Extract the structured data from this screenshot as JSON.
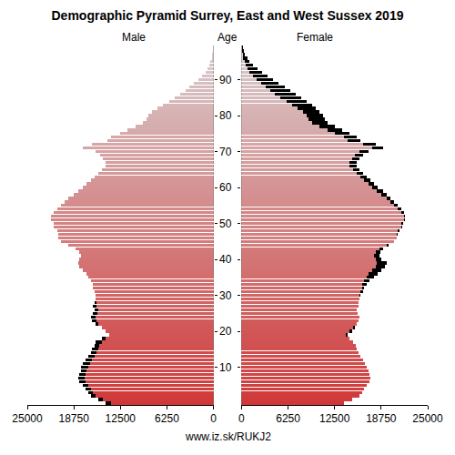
{
  "chart_data": {
    "type": "pyramid",
    "title": "Demographic Pyramid Surrey, East and West Sussex 2019",
    "ylabel": "Age",
    "source": "www.iz.sk/RUKJ2",
    "orientation": "horizontal",
    "categories": [
      0,
      1,
      2,
      3,
      4,
      5,
      6,
      7,
      8,
      9,
      10,
      11,
      12,
      13,
      14,
      15,
      16,
      17,
      18,
      19,
      20,
      21,
      22,
      23,
      24,
      25,
      26,
      27,
      28,
      29,
      30,
      31,
      32,
      33,
      34,
      35,
      36,
      37,
      38,
      39,
      40,
      41,
      42,
      43,
      44,
      45,
      46,
      47,
      48,
      49,
      50,
      51,
      52,
      53,
      54,
      55,
      56,
      57,
      58,
      59,
      60,
      61,
      62,
      63,
      64,
      65,
      66,
      67,
      68,
      69,
      70,
      71,
      72,
      73,
      74,
      75,
      76,
      77,
      78,
      79,
      80,
      81,
      82,
      83,
      84,
      85,
      86,
      87,
      88,
      89,
      90,
      91,
      92,
      93,
      94,
      95,
      96,
      97,
      98,
      99
    ],
    "series": [
      {
        "name": "Male",
        "values": [
          14500,
          15500,
          16500,
          16800,
          17200,
          17500,
          18000,
          18200,
          18000,
          17800,
          17800,
          17500,
          17200,
          16800,
          16500,
          16300,
          16000,
          15800,
          15000,
          14000,
          14500,
          15000,
          15800,
          16300,
          16500,
          16200,
          16000,
          16200,
          16000,
          15800,
          15800,
          16000,
          16200,
          16200,
          16500,
          16800,
          17000,
          17500,
          18000,
          18200,
          18000,
          17800,
          18000,
          18500,
          19500,
          20500,
          20800,
          20800,
          21000,
          21500,
          21500,
          21800,
          21800,
          21500,
          21000,
          20500,
          20000,
          19500,
          18800,
          18200,
          17500,
          17000,
          16500,
          16000,
          15500,
          15000,
          14500,
          14500,
          14800,
          15200,
          15800,
          17500,
          16300,
          14300,
          13800,
          12500,
          11500,
          10500,
          9500,
          9000,
          8800,
          8200,
          7500,
          6800,
          6000,
          5200,
          4500,
          3800,
          3200,
          2600,
          2000,
          1500,
          1100,
          800,
          550,
          400,
          250,
          150,
          100,
          60
        ]
      },
      {
        "name": "Female",
        "values": [
          13800,
          14800,
          15800,
          16200,
          16500,
          16800,
          17200,
          17300,
          17200,
          17000,
          16800,
          16600,
          16300,
          16000,
          15700,
          15500,
          15300,
          15000,
          14500,
          14200,
          14800,
          15200,
          15500,
          15700,
          15800,
          15600,
          15500,
          15700,
          15700,
          15800,
          16000,
          16300,
          16500,
          16800,
          17200,
          17800,
          18300,
          18800,
          19300,
          19500,
          18800,
          18500,
          18600,
          19000,
          19800,
          20500,
          20800,
          21000,
          21200,
          21600,
          21700,
          22000,
          22000,
          21800,
          21500,
          21000,
          20500,
          20000,
          19500,
          19000,
          18300,
          17800,
          17300,
          16800,
          16300,
          15800,
          15500,
          15500,
          15800,
          16300,
          17000,
          19000,
          18000,
          16000,
          15500,
          14500,
          13500,
          12500,
          11500,
          11200,
          11000,
          10500,
          10000,
          9500,
          8800,
          8000,
          7300,
          6500,
          5800,
          5000,
          4200,
          3500,
          2800,
          2200,
          1600,
          1100,
          800,
          500,
          300,
          200
        ]
      }
    ],
    "xlim": [
      0,
      25000
    ],
    "xticks": [
      0,
      6250,
      12500,
      18750,
      25000
    ],
    "ylim": [
      -0.5,
      99.5
    ],
    "yticks": [
      10,
      20,
      30,
      40,
      50,
      60,
      70,
      80,
      90
    ],
    "grid": false,
    "legend": "none",
    "color": "#000000"
  }
}
